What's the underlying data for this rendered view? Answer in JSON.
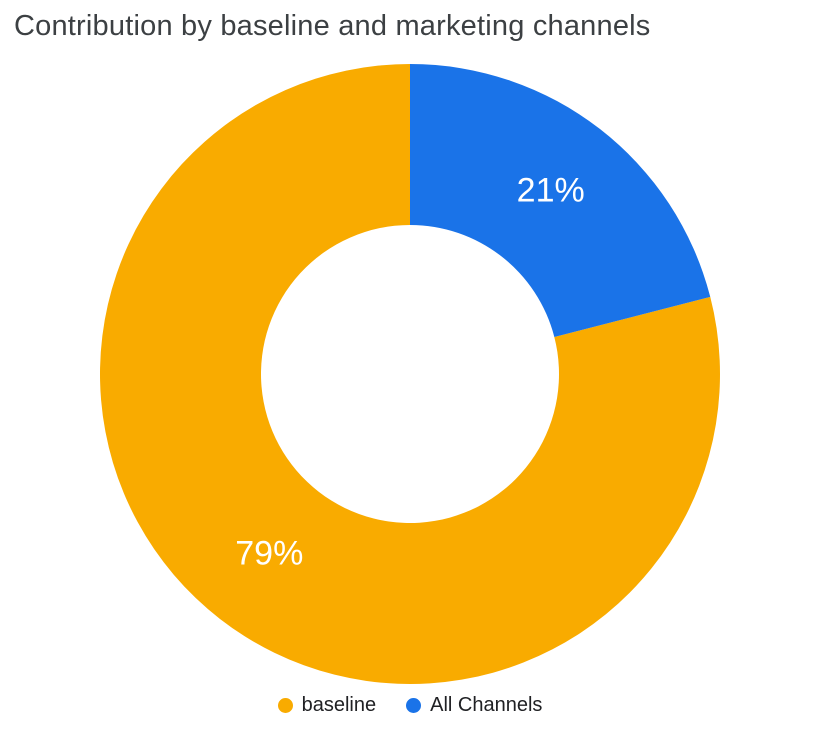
{
  "title": "Contribution by baseline and marketing channels",
  "chart_data": {
    "type": "pie",
    "subtype": "donut",
    "title": "Contribution by baseline and marketing channels",
    "categories": [
      "baseline",
      "All Channels"
    ],
    "values": [
      79,
      21
    ],
    "unit": "%",
    "slice_labels": [
      "79%",
      "21%"
    ],
    "colors": [
      "#F9AB00",
      "#1A73E8"
    ],
    "start_angle_deg": -90,
    "direction": "counter-clockwise",
    "inner_radius_ratio": 0.48,
    "legend_position": "bottom",
    "grid": false
  },
  "legend": {
    "items": [
      {
        "label": "baseline",
        "color": "#F9AB00"
      },
      {
        "label": "All Channels",
        "color": "#1A73E8"
      }
    ]
  }
}
